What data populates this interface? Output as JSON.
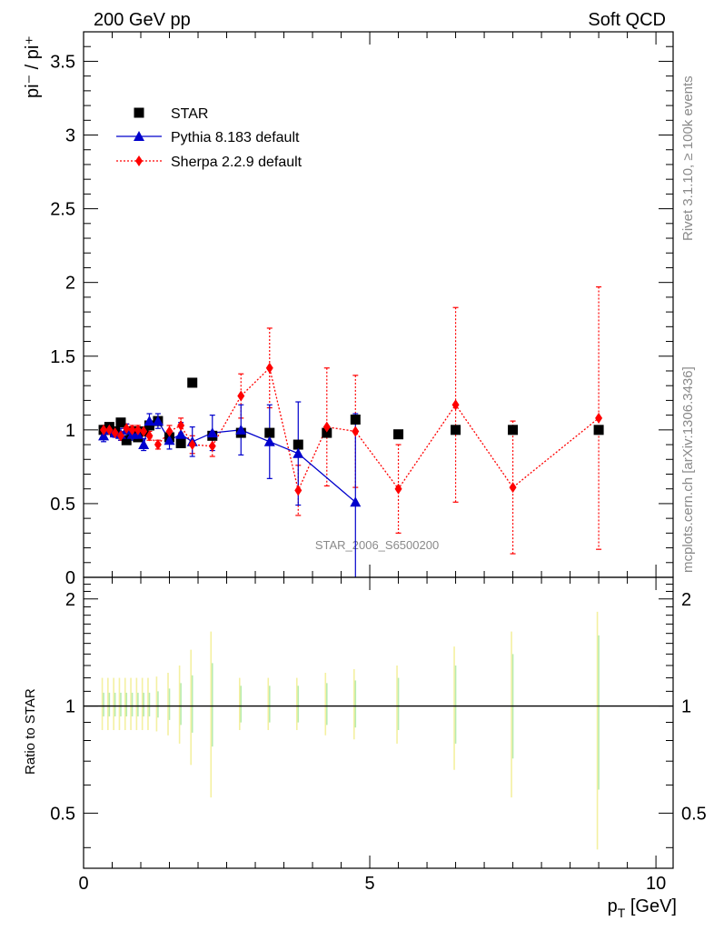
{
  "header": {
    "left": "200 GeV pp",
    "right": "Soft QCD"
  },
  "side": {
    "rivet": "Rivet 3.1.10, ≥ 100k events",
    "mcplots": "mcplots.cern.ch [arXiv:1306.3436]"
  },
  "watermark": "STAR_2006_S6500200",
  "chart_data": [
    {
      "type": "scatter",
      "title": "",
      "ylabel": "pi⁻ / pi⁺",
      "xlim": [
        0,
        10.3
      ],
      "ylim": [
        0,
        3.7
      ],
      "yticks": [
        "0",
        "0.5",
        "1",
        "1.5",
        "2",
        "2.5",
        "3",
        "3.5"
      ],
      "legend_position": "top-left",
      "series": [
        {
          "name": "STAR",
          "color": "#000000",
          "marker": "square",
          "line": "none",
          "x": [
            0.35,
            0.45,
            0.55,
            0.65,
            0.75,
            0.85,
            0.95,
            1.05,
            1.15,
            1.3,
            1.5,
            1.7,
            1.9,
            2.25,
            2.75,
            3.25,
            3.75,
            4.25,
            4.75,
            5.5,
            6.5,
            7.5,
            9.0
          ],
          "y": [
            1.0,
            1.02,
            0.99,
            1.05,
            0.93,
            0.99,
            0.95,
            0.99,
            1.03,
            1.06,
            0.95,
            0.91,
            1.32,
            0.96,
            0.98,
            0.98,
            0.9,
            0.98,
            1.07,
            0.97,
            1.0,
            1.0,
            1.0
          ]
        },
        {
          "name": "Pythia 8.183 default",
          "color": "#0000cc",
          "marker": "triangle",
          "line": "solid",
          "x": [
            0.35,
            0.45,
            0.55,
            0.65,
            0.75,
            0.85,
            0.95,
            1.05,
            1.15,
            1.3,
            1.5,
            1.7,
            1.9,
            2.25,
            2.75,
            3.25,
            3.75,
            4.75
          ],
          "y": [
            0.96,
            1.0,
            0.98,
            0.97,
            1.0,
            0.97,
            0.97,
            0.9,
            1.06,
            1.06,
            0.93,
            0.97,
            0.92,
            0.98,
            1.0,
            0.92,
            0.84,
            0.51
          ],
          "err": [
            0.04,
            0.03,
            0.03,
            0.04,
            0.04,
            0.04,
            0.04,
            0.04,
            0.05,
            0.05,
            0.06,
            0.08,
            0.1,
            0.12,
            0.17,
            0.25,
            0.35,
            0.6
          ]
        },
        {
          "name": "Sherpa 2.2.9 default",
          "color": "#ff0000",
          "marker": "diamond",
          "line": "dotted",
          "x": [
            0.35,
            0.45,
            0.55,
            0.65,
            0.75,
            0.85,
            0.95,
            1.05,
            1.15,
            1.3,
            1.5,
            1.7,
            1.9,
            2.25,
            2.75,
            3.25,
            3.75,
            4.25,
            4.75,
            5.5,
            6.5,
            7.5,
            9.0
          ],
          "y": [
            1.0,
            1.0,
            0.98,
            0.96,
            1.01,
            1.0,
            1.0,
            0.99,
            0.96,
            0.9,
            0.99,
            1.03,
            0.9,
            0.89,
            1.23,
            1.42,
            0.59,
            1.02,
            0.99,
            0.6,
            1.17,
            0.61,
            1.08
          ],
          "err": [
            0.03,
            0.03,
            0.03,
            0.03,
            0.03,
            0.03,
            0.03,
            0.03,
            0.03,
            0.03,
            0.04,
            0.05,
            0.06,
            0.07,
            0.15,
            0.27,
            0.17,
            0.4,
            0.38,
            0.3,
            0.66,
            0.45,
            0.89
          ]
        }
      ]
    },
    {
      "type": "scatter",
      "title": "",
      "xlabel": "p_T [GeV]",
      "ylabel": "Ratio to STAR",
      "xlim": [
        0,
        10.3
      ],
      "ylim": [
        0.35,
        2.3
      ],
      "ylog": true,
      "xticks": [
        "0",
        "5",
        "10"
      ],
      "yticks": [
        "0.5",
        "1",
        "2"
      ],
      "reference_line": 1.0,
      "bands": {
        "x": [
          0.35,
          0.45,
          0.55,
          0.65,
          0.75,
          0.85,
          0.95,
          1.05,
          1.15,
          1.3,
          1.5,
          1.7,
          1.9,
          2.25,
          2.75,
          3.25,
          3.75,
          4.25,
          4.75,
          5.5,
          6.5,
          7.5,
          9.0
        ],
        "green_half": [
          0.09,
          0.09,
          0.09,
          0.09,
          0.09,
          0.09,
          0.09,
          0.09,
          0.09,
          0.1,
          0.12,
          0.16,
          0.22,
          0.32,
          0.14,
          0.14,
          0.14,
          0.16,
          0.18,
          0.2,
          0.3,
          0.4,
          0.58
        ],
        "yellow_half": [
          0.2,
          0.2,
          0.2,
          0.2,
          0.2,
          0.2,
          0.2,
          0.2,
          0.2,
          0.21,
          0.24,
          0.3,
          0.44,
          0.62,
          0.2,
          0.2,
          0.2,
          0.24,
          0.27,
          0.3,
          0.47,
          0.62,
          0.84
        ]
      }
    }
  ]
}
